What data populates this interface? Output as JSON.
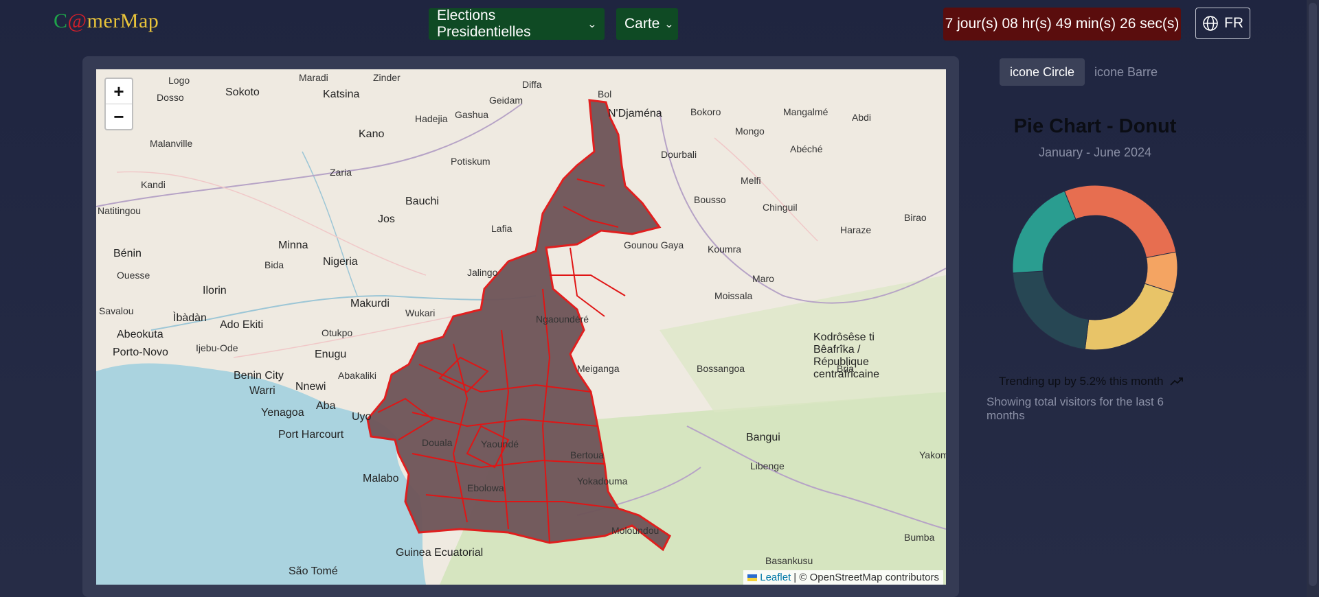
{
  "header": {
    "logo": {
      "c": "C",
      "at": "@",
      "rest": "merMap"
    },
    "menu_elections": "Elections Presidentielles",
    "menu_carte": "Carte",
    "countdown": "7 jour(s) 08 hr(s) 49 min(s) 26 sec(s)",
    "language": "FR"
  },
  "map": {
    "zoom_in": "+",
    "zoom_out": "−",
    "attribution_link": "Leaflet",
    "attribution_text": "| © OpenStreetMap contributors",
    "highlight_color": "#e01515",
    "places": [
      "Logo",
      "Sokoto",
      "Katsina",
      "Maradi",
      "Zinder",
      "Diffa",
      "Bol",
      "N'Djaména",
      "Kano",
      "Hadejia",
      "Gashua",
      "Geidam",
      "Potiskum",
      "Dosso",
      "Malanville",
      "Kandi",
      "Zaria",
      "Bauchi",
      "Jos",
      "Lafia",
      "Minna",
      "Bida",
      "Nigeria",
      "Ilorin",
      "Ìbàdàn",
      "Ado Ekiti",
      "Abeokuta",
      "Porto-Novo",
      "Ijebu-Ode",
      "Enugu",
      "Makurdi",
      "Wukari",
      "Jalingo",
      "Otukpo",
      "Benin City",
      "Warri",
      "Nnewi",
      "Abakaliki",
      "Aba",
      "Uyo",
      "Yenagoa",
      "Port Harcourt",
      "Malabo",
      "Guinea Ecuatorial",
      "São Tomé",
      "Bénin",
      "Ouesse",
      "Savalou",
      "Natitingou",
      "Bokoro",
      "Mongo",
      "Mangalmé",
      "Abéché",
      "Abdi",
      "Dourbali",
      "Melfi",
      "Bousso",
      "Chinguil",
      "Haraze",
      "Birao",
      "Gounou Gaya",
      "Koumra",
      "Maro",
      "Moissala",
      "Bossangoa",
      "Bangui",
      "Libenge",
      "Bria",
      "Yakoma",
      "Bumba",
      "Basankusu",
      "Ngaoundéré",
      "Meiganga",
      "Bertoua",
      "Yaoundé",
      "Douala",
      "Ebolowa",
      "Yokadouma",
      "Moloundou",
      "Kodrôsêse ti Bêafrîka / République centrafricaine"
    ]
  },
  "panel": {
    "tab_circle": "icone Circle",
    "tab_bar": "icone Barre",
    "trend_text": "Trending up by 5.2% this month",
    "footer_text": "Showing total visitors for the last 6 months"
  },
  "chart_data": {
    "type": "pie",
    "donut": true,
    "title": "Pie Chart - Donut",
    "subtitle": "January - June 2024",
    "slices": [
      {
        "value": 28,
        "color": "#e76e50"
      },
      {
        "value": 8,
        "color": "#f4a462"
      },
      {
        "value": 22,
        "color": "#e8c468"
      },
      {
        "value": 22,
        "color": "#274754"
      },
      {
        "value": 20,
        "color": "#2a9d90"
      }
    ]
  }
}
